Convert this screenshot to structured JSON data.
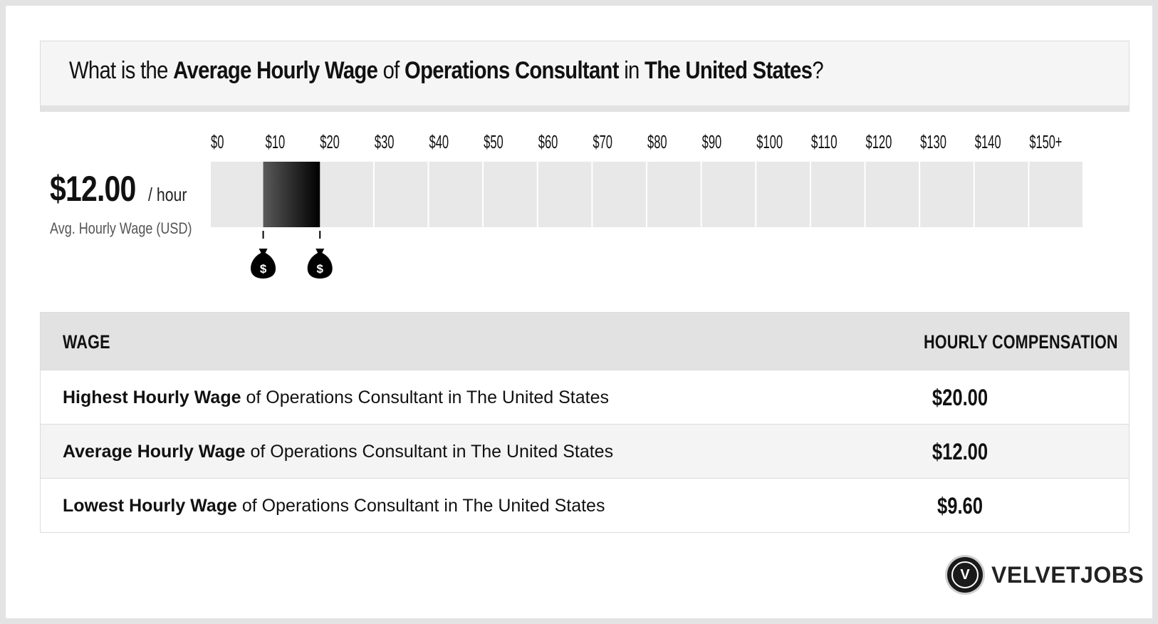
{
  "title": {
    "prefix": "What is the",
    "metric": "Average Hourly Wage",
    "of": "of",
    "job": "Operations Consultant",
    "in": "in",
    "location": "The United States",
    "suffix": "?"
  },
  "summary": {
    "value": "$12.00",
    "unit": "/ hour",
    "caption": "Avg. Hourly Wage (USD)"
  },
  "chart_data": {
    "type": "bar",
    "categories": [
      "$0",
      "$10",
      "$20",
      "$30",
      "$40",
      "$50",
      "$60",
      "$70",
      "$80",
      "$90",
      "$100",
      "$110",
      "$120",
      "$130",
      "$140",
      "$150+"
    ],
    "range": {
      "low": 9.6,
      "high": 20.0,
      "average": 12.0
    },
    "xlim": [
      0,
      150
    ],
    "markers": [
      {
        "value": 9.6,
        "icon": "money-bag-icon",
        "symbol": "$"
      },
      {
        "value": 20.0,
        "icon": "money-bag-icon",
        "symbol": "$"
      }
    ],
    "colors": {
      "track": "#e8e8e8",
      "range_start": "#5a5a5a",
      "range_end": "#000000"
    }
  },
  "table": {
    "headers": {
      "left": "WAGE",
      "right": "HOURLY COMPENSATION"
    },
    "rows": [
      {
        "label": "Highest Hourly Wage",
        "rest": "of Operations Consultant in The United States",
        "value": "$20.00"
      },
      {
        "label": "Average Hourly Wage",
        "rest": "of Operations Consultant in The United States",
        "value": "$12.00"
      },
      {
        "label": "Lowest Hourly Wage",
        "rest": "of Operations Consultant in The United States",
        "value": "$9.60"
      }
    ]
  },
  "brand": {
    "initial": "V",
    "name": "VELVETJOBS"
  }
}
